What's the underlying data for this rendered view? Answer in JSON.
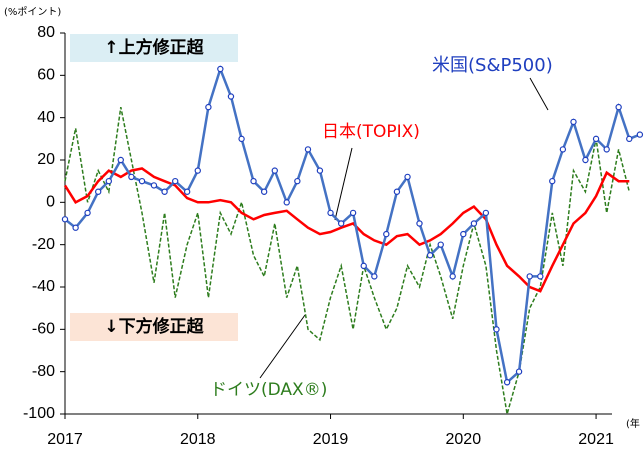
{
  "chart_data": {
    "type": "line",
    "y_unit": "(%ポイント)",
    "x_unit": "(年",
    "annotations": [
      "↑上方修正超",
      "↓下方修正超"
    ],
    "xlim": [
      2017,
      2021.12
    ],
    "xticks": [
      2017,
      2018,
      2019,
      2020,
      2021
    ],
    "ylim": [
      -100,
      80
    ],
    "yticks": [
      -100,
      -80,
      -60,
      -40,
      -20,
      0,
      20,
      40,
      60,
      80
    ],
    "series": [
      {
        "name": "米国(S&P500)",
        "color": "#4472c4",
        "style": "solid-markers",
        "x": [
          2017.0,
          2017.08,
          2017.17,
          2017.25,
          2017.33,
          2017.42,
          2017.5,
          2017.58,
          2017.67,
          2017.75,
          2017.83,
          2017.92,
          2018.0,
          2018.08,
          2018.17,
          2018.25,
          2018.33,
          2018.42,
          2018.5,
          2018.58,
          2018.67,
          2018.75,
          2018.83,
          2018.92,
          2019.0,
          2019.08,
          2019.17,
          2019.25,
          2019.33,
          2019.42,
          2019.5,
          2019.58,
          2019.67,
          2019.75,
          2019.83,
          2019.92,
          2020.0,
          2020.08,
          2020.17,
          2020.25,
          2020.33,
          2020.42,
          2020.5,
          2020.58,
          2020.67,
          2020.75,
          2020.83,
          2020.92,
          2021.0,
          2021.08,
          2021.17,
          2021.25,
          2021.33
        ],
        "values": [
          -8,
          -12,
          -5,
          5,
          10,
          20,
          12,
          10,
          8,
          5,
          10,
          5,
          15,
          45,
          63,
          50,
          30,
          10,
          5,
          15,
          0,
          10,
          25,
          15,
          -5,
          -10,
          -5,
          -30,
          -35,
          -15,
          5,
          12,
          -10,
          -25,
          -20,
          -35,
          -15,
          -10,
          -5,
          -60,
          -85,
          -80,
          -35,
          -35,
          10,
          25,
          38,
          20,
          30,
          25,
          45,
          30,
          32
        ]
      },
      {
        "name": "日本(TOPIX)",
        "color": "#ff0000",
        "style": "solid",
        "x": [
          2017.0,
          2017.08,
          2017.17,
          2017.25,
          2017.33,
          2017.42,
          2017.5,
          2017.58,
          2017.67,
          2017.75,
          2017.83,
          2017.92,
          2018.0,
          2018.08,
          2018.17,
          2018.25,
          2018.33,
          2018.42,
          2018.5,
          2018.58,
          2018.67,
          2018.75,
          2018.83,
          2018.92,
          2019.0,
          2019.08,
          2019.17,
          2019.25,
          2019.33,
          2019.42,
          2019.5,
          2019.58,
          2019.67,
          2019.75,
          2019.83,
          2019.92,
          2020.0,
          2020.08,
          2020.17,
          2020.25,
          2020.33,
          2020.42,
          2020.5,
          2020.58,
          2020.67,
          2020.75,
          2020.83,
          2020.92,
          2021.0,
          2021.08,
          2021.17,
          2021.25
        ],
        "values": [
          8,
          0,
          3,
          10,
          15,
          12,
          15,
          16,
          12,
          10,
          8,
          2,
          0,
          0,
          1,
          0,
          -5,
          -8,
          -6,
          -5,
          -4,
          -8,
          -12,
          -15,
          -14,
          -12,
          -10,
          -15,
          -18,
          -20,
          -16,
          -15,
          -20,
          -18,
          -15,
          -10,
          -5,
          -2,
          -8,
          -20,
          -30,
          -35,
          -40,
          -42,
          -30,
          -20,
          -10,
          -5,
          3,
          14,
          10,
          10
        ]
      },
      {
        "name": "ドイツ(DAX®)",
        "color": "#2e7d1e",
        "style": "dashed",
        "x": [
          2017.0,
          2017.08,
          2017.17,
          2017.25,
          2017.33,
          2017.42,
          2017.5,
          2017.58,
          2017.67,
          2017.75,
          2017.83,
          2017.92,
          2018.0,
          2018.08,
          2018.17,
          2018.25,
          2018.33,
          2018.42,
          2018.5,
          2018.58,
          2018.67,
          2018.75,
          2018.83,
          2018.92,
          2019.0,
          2019.08,
          2019.17,
          2019.25,
          2019.33,
          2019.42,
          2019.5,
          2019.58,
          2019.67,
          2019.75,
          2019.83,
          2019.92,
          2020.0,
          2020.08,
          2020.17,
          2020.25,
          2020.33,
          2020.42,
          2020.5,
          2020.58,
          2020.67,
          2020.75,
          2020.83,
          2020.92,
          2021.0,
          2021.08,
          2021.17,
          2021.25
        ],
        "values": [
          10,
          35,
          0,
          15,
          5,
          45,
          20,
          -5,
          -38,
          -5,
          -45,
          -20,
          -5,
          -45,
          -5,
          -15,
          0,
          -25,
          -35,
          -10,
          -45,
          -30,
          -60,
          -65,
          -45,
          -30,
          -60,
          -30,
          -45,
          -60,
          -50,
          -30,
          -40,
          -20,
          -35,
          -55,
          -30,
          -10,
          -30,
          -70,
          -100,
          -80,
          -50,
          -40,
          -5,
          -30,
          15,
          5,
          30,
          -5,
          25,
          5
        ]
      }
    ]
  }
}
